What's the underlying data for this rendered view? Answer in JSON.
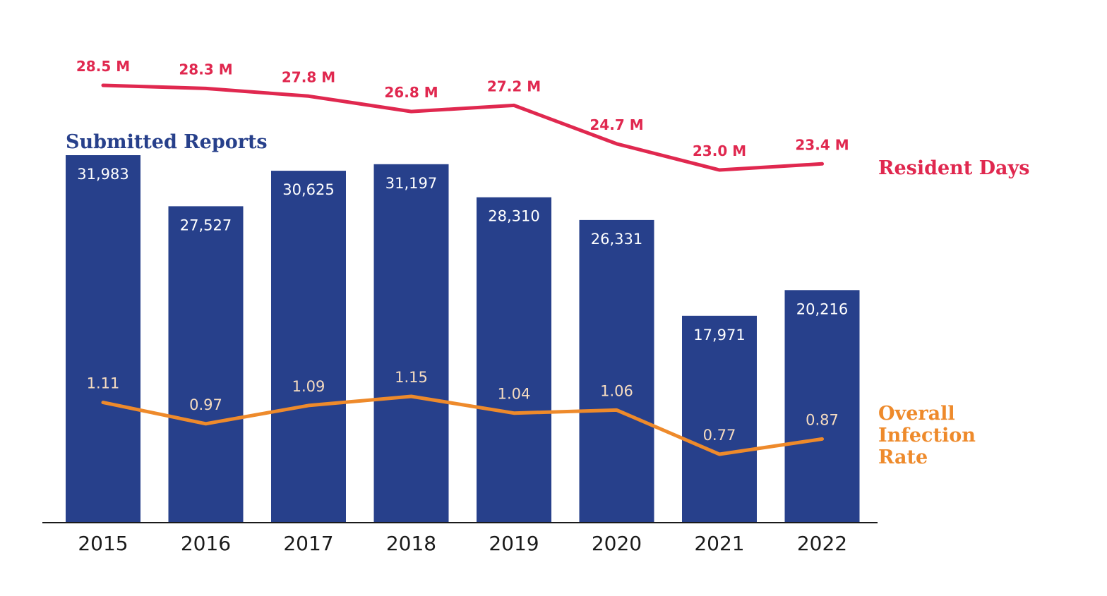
{
  "colors": {
    "bars": "#27408b",
    "resident_days": "#e0284f",
    "infection_rate": "#ee8a2b",
    "rate_label": "#f6dcc0",
    "axis": "#1a1a1a"
  },
  "chart_data": {
    "type": "bar",
    "categories": [
      "2015",
      "2016",
      "2017",
      "2018",
      "2019",
      "2020",
      "2021",
      "2022"
    ],
    "series": [
      {
        "name": "Submitted Reports",
        "type": "bar",
        "values": [
          31983,
          27527,
          30625,
          31197,
          28310,
          26331,
          17971,
          20216
        ],
        "labels": [
          "31,983",
          "27,527",
          "30,625",
          "31,197",
          "28,310",
          "26,331",
          "17,971",
          "20,216"
        ]
      },
      {
        "name": "Resident Days",
        "type": "line",
        "values": [
          28.5,
          28.3,
          27.8,
          26.8,
          27.2,
          24.7,
          23.0,
          23.4
        ],
        "labels": [
          "28.5 M",
          "28.3 M",
          "27.8 M",
          "26.8 M",
          "27.2 M",
          "24.7 M",
          "23.0 M",
          "23.4 M"
        ]
      },
      {
        "name": "Overall Infection Rate",
        "type": "line",
        "values": [
          1.11,
          0.97,
          1.09,
          1.15,
          1.04,
          1.06,
          0.77,
          0.87
        ],
        "labels": [
          "1.11",
          "0.97",
          "1.09",
          "1.15",
          "1.04",
          "1.06",
          "0.77",
          "0.87"
        ]
      }
    ],
    "legend": {
      "bars": "Submitted Reports",
      "resident_days": "Resident Days",
      "infection_rate_lines": [
        "Overall",
        "Infection",
        "Rate"
      ]
    },
    "title": "",
    "xlabel": "",
    "ylabel": "",
    "ylim": [
      0,
      33000
    ],
    "grid": false
  }
}
